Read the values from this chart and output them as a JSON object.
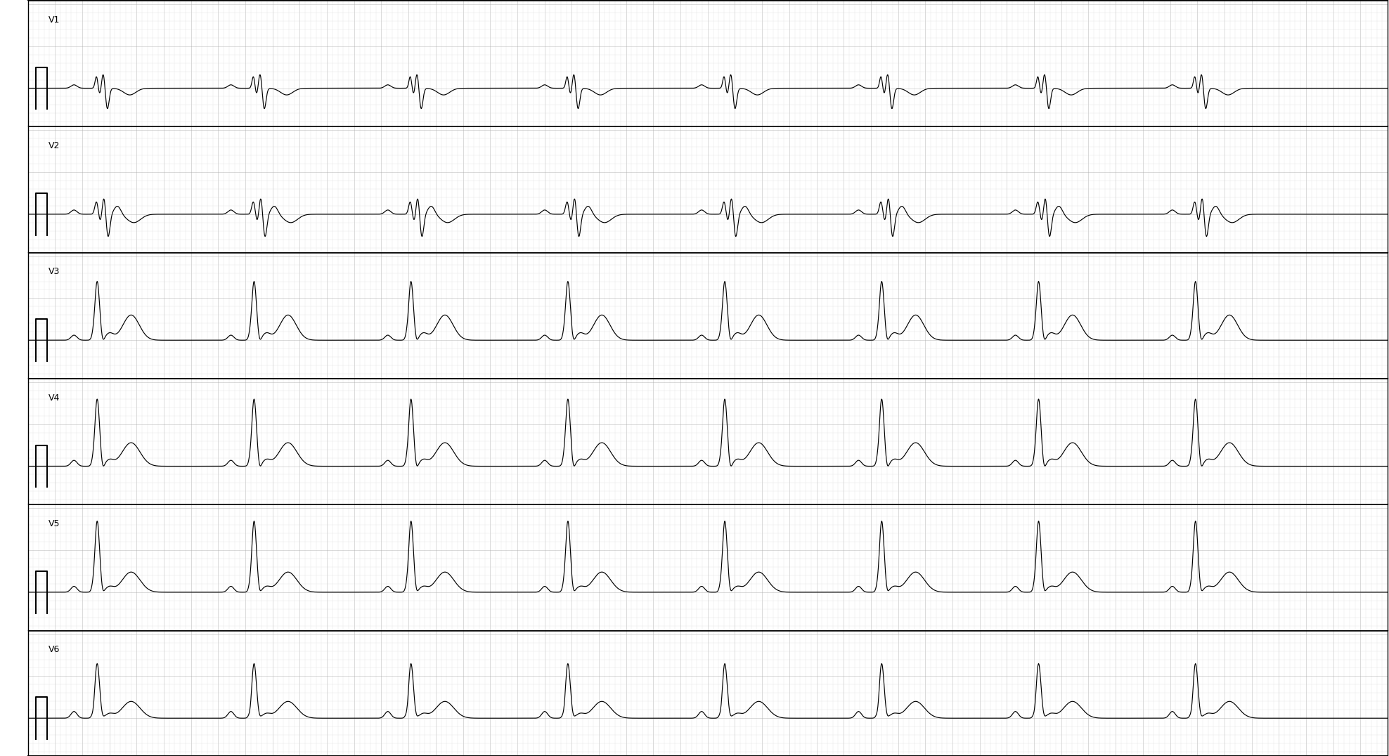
{
  "bg_color": "#ffffff",
  "grid_minor_color": "#cccccc",
  "grid_major_color": "#aaaaaa",
  "ecg_color": "#000000",
  "separator_color": "#000000",
  "lead_labels": [
    "V1",
    "V2",
    "V3",
    "V4",
    "V5",
    "V6"
  ],
  "fig_width": 19.76,
  "fig_height": 10.76,
  "dpi": 100,
  "n_leads": 6,
  "duration_seconds": 10,
  "sample_rate": 500,
  "heart_rate": 52,
  "label_fontsize": 9
}
